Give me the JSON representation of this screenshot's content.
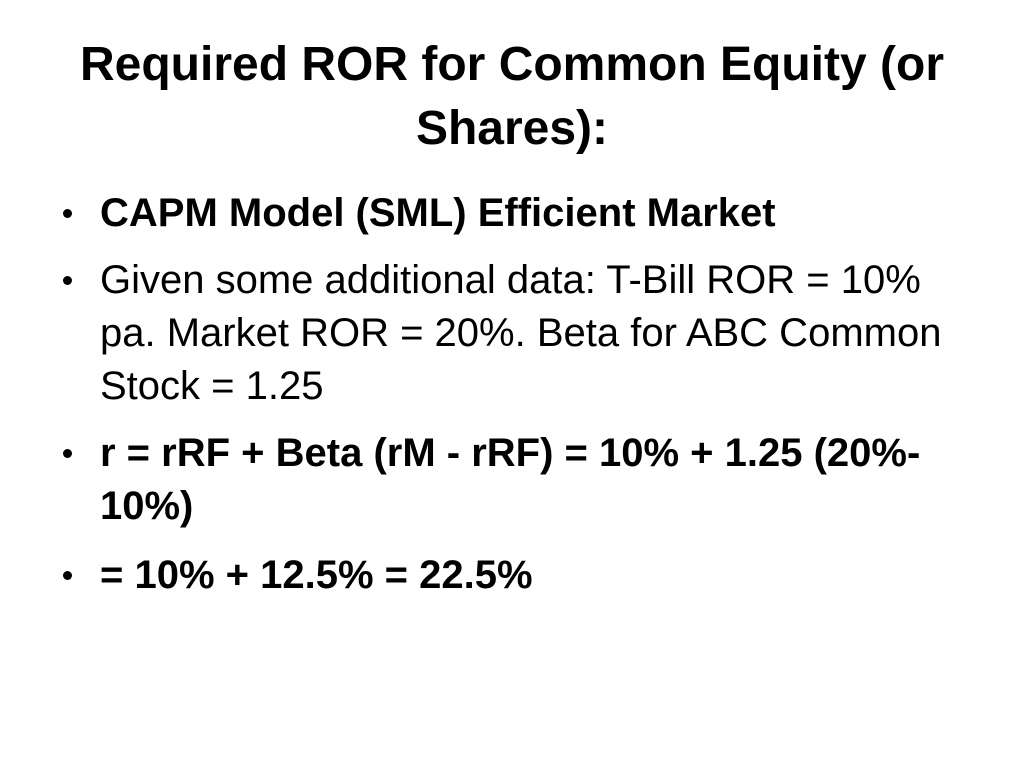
{
  "slide": {
    "title_lines": [
      "Required ROR for Common Equity (or",
      "Shares):"
    ],
    "bullets": [
      {
        "lines": [
          "CAPM Model (SML) Efficient Market"
        ]
      },
      {
        "lines": [
          "Given some additional data: T-Bill ROR = 10%",
          "pa. Market ROR = 20%. Beta for ABC Common",
          "Stock = 1.25"
        ]
      },
      {
        "lines": [
          "r = rRF + Beta (rM - rRF) = 10% + 1.25 (20%-",
          "10%)"
        ]
      },
      {
        "lines": [
          "= 10% + 12.5% = 22.5%"
        ]
      }
    ]
  },
  "colors": {
    "background": "#ffffff",
    "text": "#000000"
  }
}
